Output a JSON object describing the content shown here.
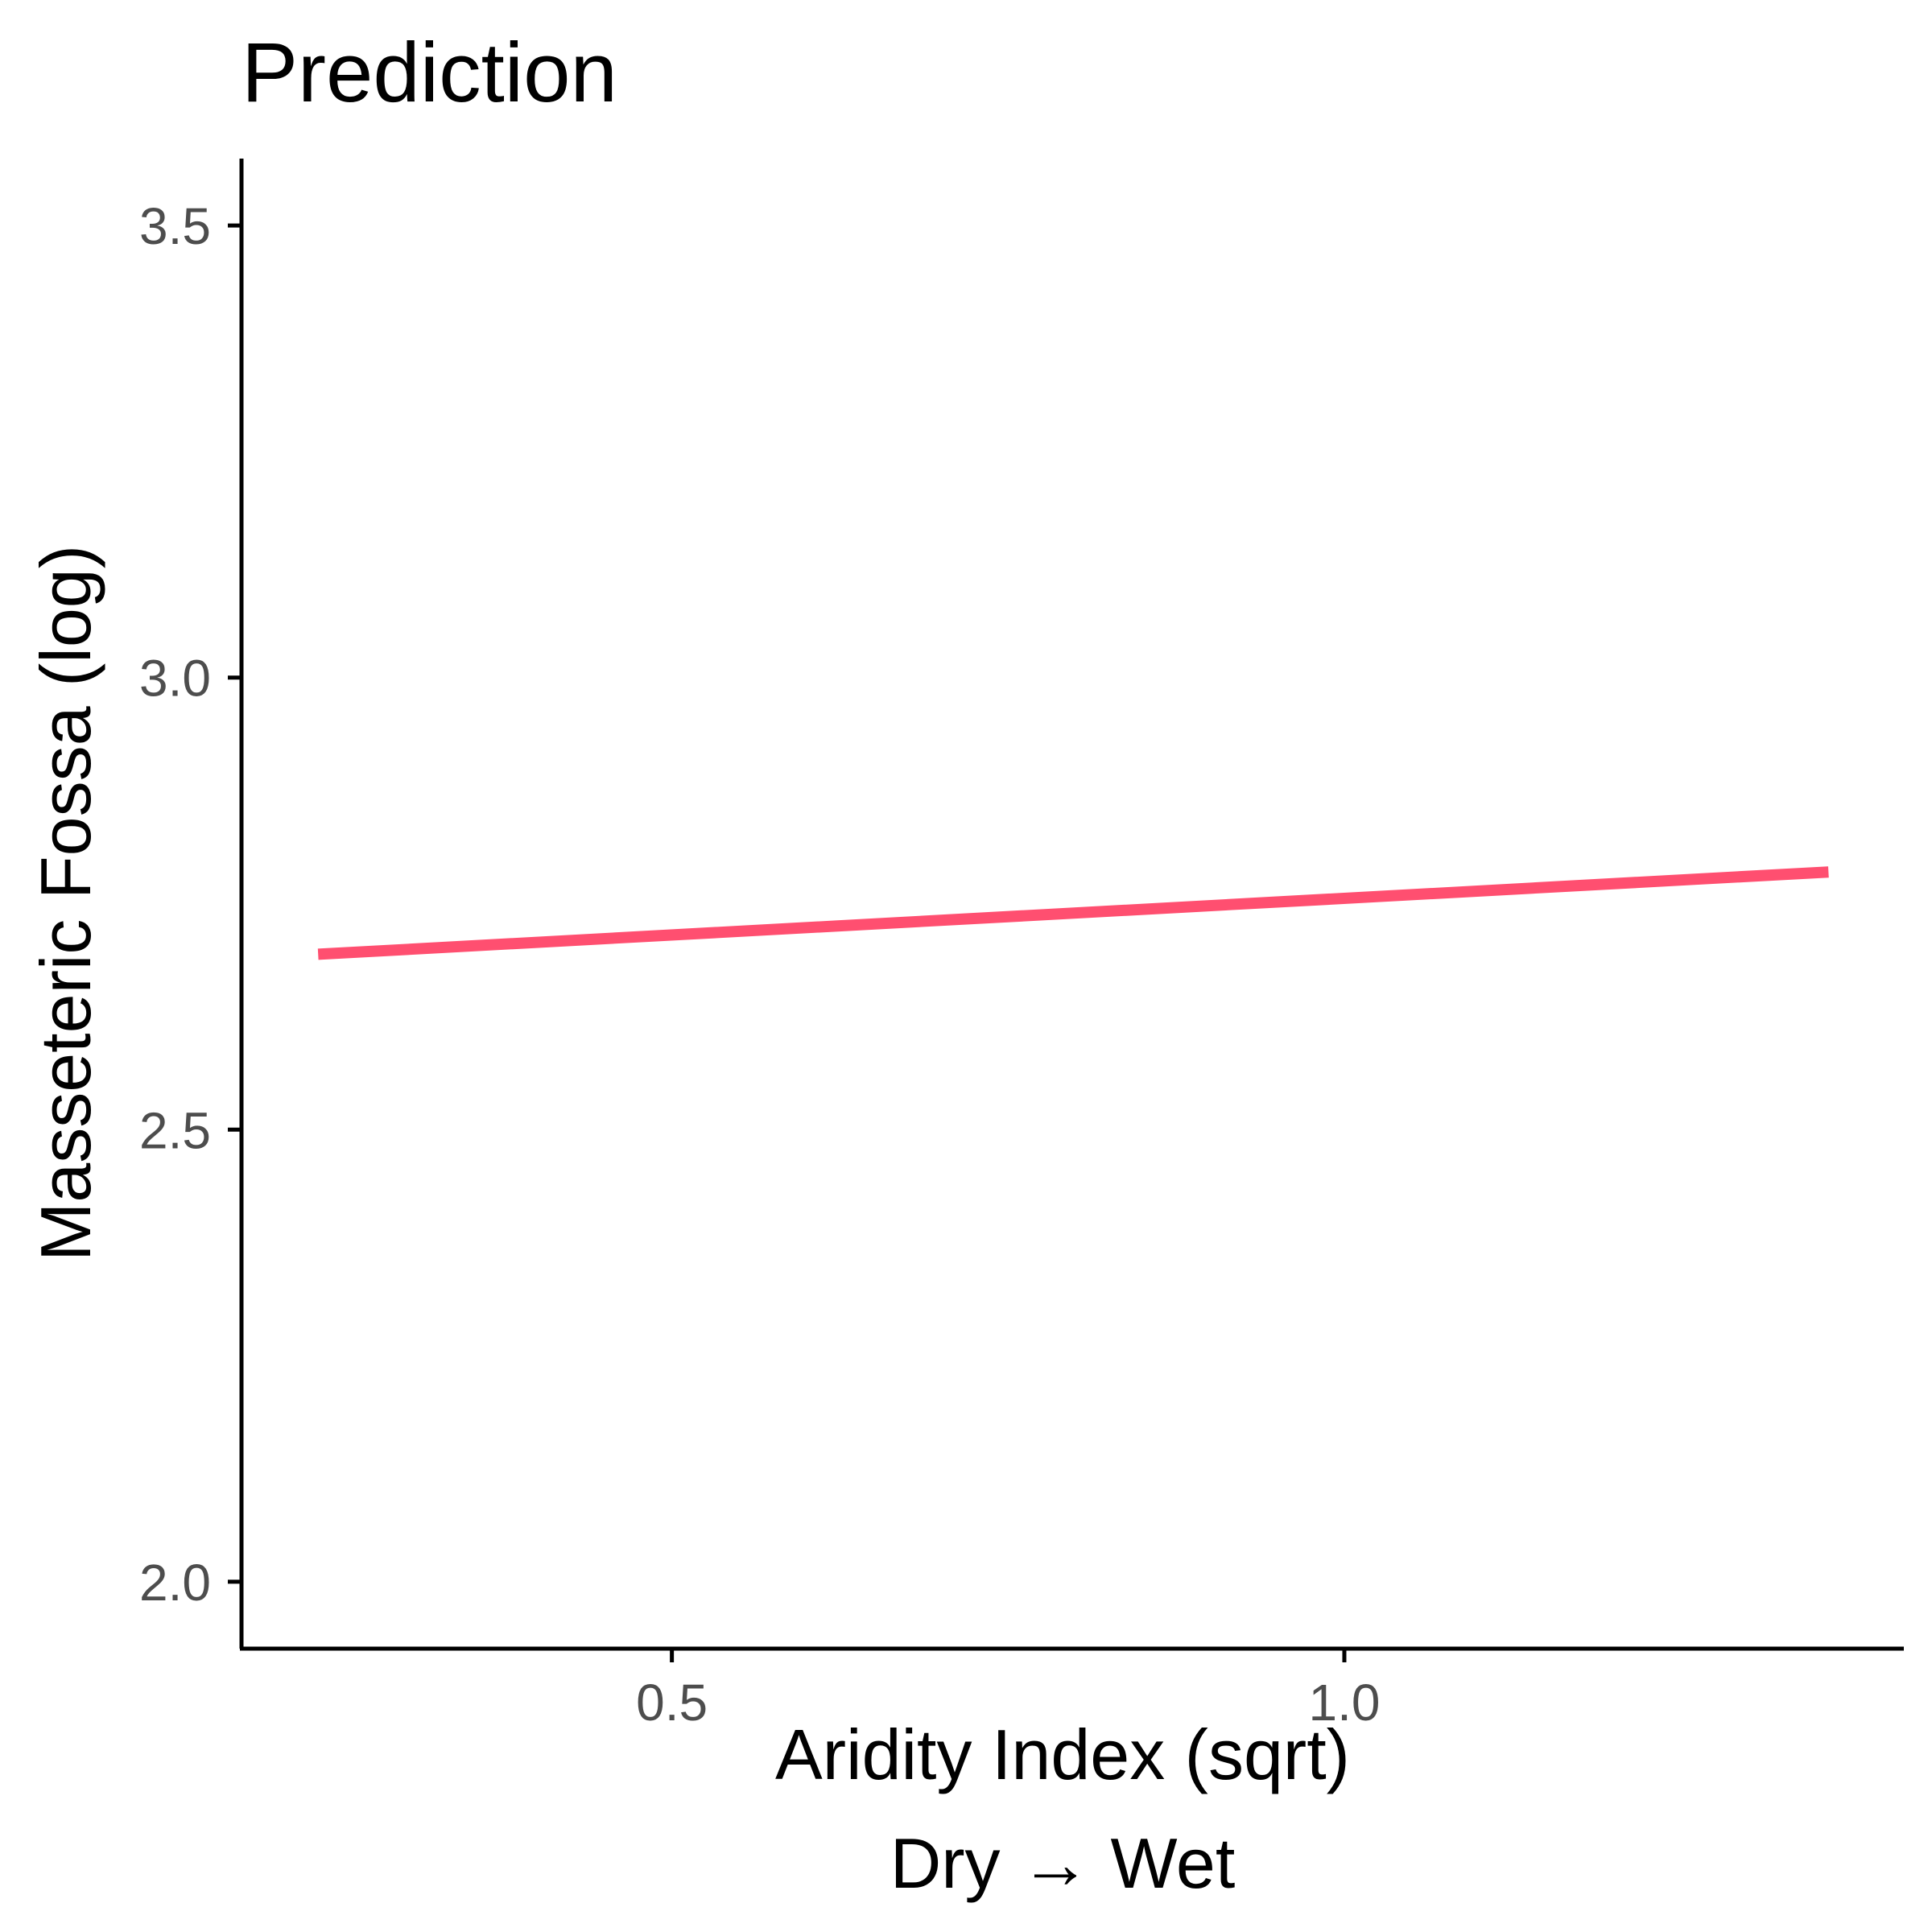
{
  "chart_data": {
    "type": "line",
    "title": "Prediction",
    "xlabel": "Aridity Index (sqrt)",
    "xlabel_line2": "Dry → Wet",
    "ylabel": "Masseteric Fossa (log)",
    "xlim": [
      0.18,
      1.416
    ],
    "ylim": [
      1.926,
      3.574
    ],
    "x_ticks": [
      0.5,
      1.0
    ],
    "x_tick_labels": [
      "0.5",
      "1.0"
    ],
    "y_ticks": [
      2.0,
      2.5,
      3.0,
      3.5
    ],
    "y_tick_labels": [
      "2.0",
      "2.5",
      "3.0",
      "3.5"
    ],
    "grid": false,
    "series": [
      {
        "color": "#ff4f70",
        "x": [
          0.237,
          1.36
        ],
        "y": [
          2.694,
          2.785
        ]
      }
    ]
  }
}
